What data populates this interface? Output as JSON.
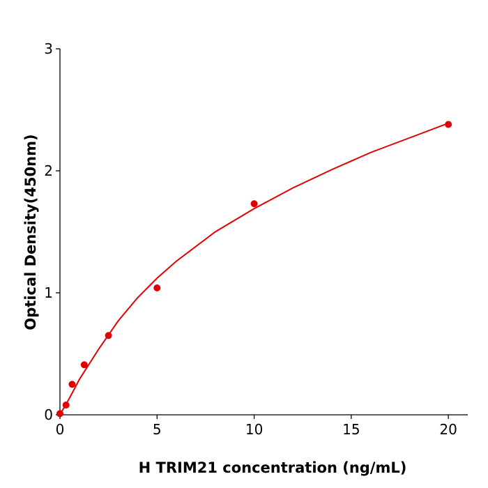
{
  "chart_data": {
    "type": "scatter",
    "xlabel": "H  TRIM21 concentration (ng/mL)",
    "ylabel": "Optical Density(450nm)",
    "x": [
      0,
      0.3125,
      0.625,
      1.25,
      2.5,
      5,
      10,
      20
    ],
    "values": [
      0.01,
      0.08,
      0.25,
      0.41,
      0.65,
      1.04,
      1.73,
      2.38
    ],
    "color": "#e00000",
    "fit": {
      "x": [
        0,
        0.5,
        1,
        2,
        3,
        4,
        5,
        6,
        8,
        10,
        12,
        14,
        16,
        18,
        20
      ],
      "values": [
        0,
        0.14,
        0.29,
        0.54,
        0.77,
        0.96,
        1.12,
        1.26,
        1.5,
        1.69,
        1.86,
        2.01,
        2.15,
        2.27,
        2.39
      ],
      "color": "#e00000"
    },
    "xlim": [
      0,
      21
    ],
    "ylim": [
      0,
      3
    ],
    "xticks": [
      0,
      5,
      10,
      15,
      20
    ],
    "yticks": [
      0,
      1,
      2,
      3
    ]
  }
}
